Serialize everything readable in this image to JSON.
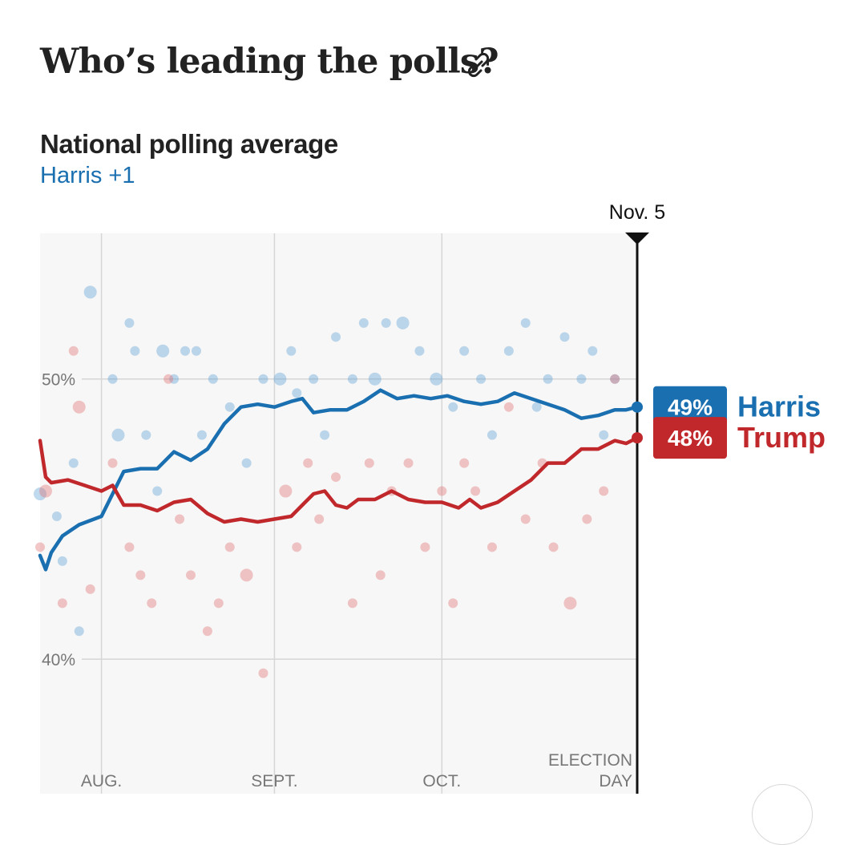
{
  "header": {
    "title": "Who’s leading the polls?",
    "link_icon": "link-icon"
  },
  "chart_header": {
    "title": "National polling average",
    "margin": "Harris +1"
  },
  "colors": {
    "harris": "#1a6fb0",
    "trump": "#c0282c",
    "harris_dot": "#5e9fd4",
    "trump_dot": "#e07474",
    "plot_bg": "#f7f7f7",
    "grid": "#d6d6d6"
  },
  "chart_data": {
    "type": "line",
    "x_axis": {
      "type": "date",
      "range": [
        "2024-07-21",
        "2024-11-05"
      ],
      "ticks": [
        {
          "date": "2024-08-01",
          "label": "AUG."
        },
        {
          "date": "2024-09-01",
          "label": "SEPT."
        },
        {
          "date": "2024-10-01",
          "label": "OCT."
        },
        {
          "date": "2024-11-05",
          "label": "ELECTION DAY"
        }
      ]
    },
    "y_axis": {
      "range": [
        35.2,
        55.2
      ],
      "ticks": [
        {
          "value": 50,
          "label": "50%"
        },
        {
          "value": 40,
          "label": "40%"
        }
      ],
      "unit": "%"
    },
    "grid": true,
    "marker": {
      "date": "2024-11-05",
      "label": "Nov. 5"
    },
    "series": [
      {
        "name": "Harris",
        "final_label": "49%",
        "points": [
          [
            "2024-07-21",
            43.7
          ],
          [
            "2024-07-22",
            43.2
          ],
          [
            "2024-07-23",
            43.8
          ],
          [
            "2024-07-25",
            44.4
          ],
          [
            "2024-07-28",
            44.8
          ],
          [
            "2024-08-01",
            45.1
          ],
          [
            "2024-08-03",
            45.9
          ],
          [
            "2024-08-05",
            46.7
          ],
          [
            "2024-08-08",
            46.8
          ],
          [
            "2024-08-11",
            46.8
          ],
          [
            "2024-08-14",
            47.4
          ],
          [
            "2024-08-17",
            47.1
          ],
          [
            "2024-08-20",
            47.5
          ],
          [
            "2024-08-23",
            48.4
          ],
          [
            "2024-08-26",
            49.0
          ],
          [
            "2024-08-29",
            49.1
          ],
          [
            "2024-09-01",
            49.0
          ],
          [
            "2024-09-04",
            49.2
          ],
          [
            "2024-09-06",
            49.3
          ],
          [
            "2024-09-08",
            48.8
          ],
          [
            "2024-09-11",
            48.9
          ],
          [
            "2024-09-14",
            48.9
          ],
          [
            "2024-09-17",
            49.2
          ],
          [
            "2024-09-20",
            49.6
          ],
          [
            "2024-09-23",
            49.3
          ],
          [
            "2024-09-26",
            49.4
          ],
          [
            "2024-09-29",
            49.3
          ],
          [
            "2024-10-02",
            49.4
          ],
          [
            "2024-10-05",
            49.2
          ],
          [
            "2024-10-08",
            49.1
          ],
          [
            "2024-10-11",
            49.2
          ],
          [
            "2024-10-14",
            49.5
          ],
          [
            "2024-10-17",
            49.3
          ],
          [
            "2024-10-20",
            49.1
          ],
          [
            "2024-10-23",
            48.9
          ],
          [
            "2024-10-26",
            48.6
          ],
          [
            "2024-10-29",
            48.7
          ],
          [
            "2024-11-01",
            48.9
          ],
          [
            "2024-11-03",
            48.9
          ],
          [
            "2024-11-05",
            49.0
          ]
        ]
      },
      {
        "name": "Trump",
        "final_label": "48%",
        "points": [
          [
            "2024-07-21",
            47.8
          ],
          [
            "2024-07-22",
            46.5
          ],
          [
            "2024-07-23",
            46.3
          ],
          [
            "2024-07-26",
            46.4
          ],
          [
            "2024-07-29",
            46.2
          ],
          [
            "2024-08-01",
            46.0
          ],
          [
            "2024-08-03",
            46.2
          ],
          [
            "2024-08-05",
            45.5
          ],
          [
            "2024-08-08",
            45.5
          ],
          [
            "2024-08-11",
            45.3
          ],
          [
            "2024-08-14",
            45.6
          ],
          [
            "2024-08-17",
            45.7
          ],
          [
            "2024-08-20",
            45.2
          ],
          [
            "2024-08-23",
            44.9
          ],
          [
            "2024-08-26",
            45.0
          ],
          [
            "2024-08-29",
            44.9
          ],
          [
            "2024-09-01",
            45.0
          ],
          [
            "2024-09-04",
            45.1
          ],
          [
            "2024-09-06",
            45.5
          ],
          [
            "2024-09-08",
            45.9
          ],
          [
            "2024-09-10",
            46.0
          ],
          [
            "2024-09-12",
            45.5
          ],
          [
            "2024-09-14",
            45.4
          ],
          [
            "2024-09-16",
            45.7
          ],
          [
            "2024-09-19",
            45.7
          ],
          [
            "2024-09-22",
            46.0
          ],
          [
            "2024-09-25",
            45.7
          ],
          [
            "2024-09-28",
            45.6
          ],
          [
            "2024-10-01",
            45.6
          ],
          [
            "2024-10-04",
            45.4
          ],
          [
            "2024-10-06",
            45.7
          ],
          [
            "2024-10-08",
            45.4
          ],
          [
            "2024-10-11",
            45.6
          ],
          [
            "2024-10-14",
            46.0
          ],
          [
            "2024-10-17",
            46.4
          ],
          [
            "2024-10-20",
            47.0
          ],
          [
            "2024-10-23",
            47.0
          ],
          [
            "2024-10-26",
            47.5
          ],
          [
            "2024-10-29",
            47.5
          ],
          [
            "2024-11-01",
            47.8
          ],
          [
            "2024-11-03",
            47.7
          ],
          [
            "2024-11-05",
            47.9
          ]
        ]
      }
    ],
    "polls": {
      "harris": [
        [
          "2024-07-21",
          45.9,
          2
        ],
        [
          "2024-07-24",
          45.1,
          1
        ],
        [
          "2024-07-25",
          43.5,
          1
        ],
        [
          "2024-07-27",
          47.0,
          1
        ],
        [
          "2024-07-28",
          41.0,
          1
        ],
        [
          "2024-07-30",
          53.1,
          2
        ],
        [
          "2024-08-03",
          50.0,
          1
        ],
        [
          "2024-08-04",
          48.0,
          2
        ],
        [
          "2024-08-06",
          52.0,
          1
        ],
        [
          "2024-08-07",
          51.0,
          1
        ],
        [
          "2024-08-09",
          48.0,
          1
        ],
        [
          "2024-08-11",
          46.0,
          1
        ],
        [
          "2024-08-12",
          51.0,
          2
        ],
        [
          "2024-08-14",
          50.0,
          1
        ],
        [
          "2024-08-16",
          51.0,
          1
        ],
        [
          "2024-08-18",
          51.0,
          1
        ],
        [
          "2024-08-19",
          48.0,
          1
        ],
        [
          "2024-08-21",
          50.0,
          1
        ],
        [
          "2024-08-24",
          49.0,
          1
        ],
        [
          "2024-08-27",
          47.0,
          1
        ],
        [
          "2024-08-30",
          50.0,
          1
        ],
        [
          "2024-09-02",
          50.0,
          2
        ],
        [
          "2024-09-04",
          51.0,
          1
        ],
        [
          "2024-09-05",
          49.5,
          1
        ],
        [
          "2024-09-08",
          50.0,
          1
        ],
        [
          "2024-09-10",
          48.0,
          1
        ],
        [
          "2024-09-12",
          51.5,
          1
        ],
        [
          "2024-09-15",
          50.0,
          1
        ],
        [
          "2024-09-17",
          52.0,
          1
        ],
        [
          "2024-09-19",
          50.0,
          2
        ],
        [
          "2024-09-21",
          52.0,
          1
        ],
        [
          "2024-09-24",
          52.0,
          2
        ],
        [
          "2024-09-27",
          51.0,
          1
        ],
        [
          "2024-09-30",
          50.0,
          2
        ],
        [
          "2024-10-03",
          49.0,
          1
        ],
        [
          "2024-10-05",
          51.0,
          1
        ],
        [
          "2024-10-08",
          50.0,
          1
        ],
        [
          "2024-10-10",
          48.0,
          1
        ],
        [
          "2024-10-13",
          51.0,
          1
        ],
        [
          "2024-10-16",
          52.0,
          1
        ],
        [
          "2024-10-18",
          49.0,
          1
        ],
        [
          "2024-10-20",
          50.0,
          1
        ],
        [
          "2024-10-23",
          51.5,
          1
        ],
        [
          "2024-10-26",
          50.0,
          1
        ],
        [
          "2024-10-28",
          51.0,
          1
        ],
        [
          "2024-10-30",
          48.0,
          1
        ],
        [
          "2024-11-01",
          50.0,
          1
        ]
      ],
      "trump": [
        [
          "2024-07-21",
          44.0,
          1
        ],
        [
          "2024-07-22",
          46.0,
          2
        ],
        [
          "2024-07-25",
          42.0,
          1
        ],
        [
          "2024-07-27",
          51.0,
          1
        ],
        [
          "2024-07-28",
          49.0,
          2
        ],
        [
          "2024-07-30",
          42.5,
          1
        ],
        [
          "2024-08-03",
          47.0,
          1
        ],
        [
          "2024-08-06",
          44.0,
          1
        ],
        [
          "2024-08-08",
          43.0,
          1
        ],
        [
          "2024-08-10",
          42.0,
          1
        ],
        [
          "2024-08-13",
          50.0,
          1
        ],
        [
          "2024-08-15",
          45.0,
          1
        ],
        [
          "2024-08-17",
          43.0,
          1
        ],
        [
          "2024-08-20",
          41.0,
          1
        ],
        [
          "2024-08-22",
          42.0,
          1
        ],
        [
          "2024-08-24",
          44.0,
          1
        ],
        [
          "2024-08-27",
          43.0,
          2
        ],
        [
          "2024-08-30",
          39.5,
          1
        ],
        [
          "2024-09-03",
          46.0,
          2
        ],
        [
          "2024-09-05",
          44.0,
          1
        ],
        [
          "2024-09-07",
          47.0,
          1
        ],
        [
          "2024-09-09",
          45.0,
          1
        ],
        [
          "2024-09-12",
          46.5,
          1
        ],
        [
          "2024-09-15",
          42.0,
          1
        ],
        [
          "2024-09-18",
          47.0,
          1
        ],
        [
          "2024-09-20",
          43.0,
          1
        ],
        [
          "2024-09-22",
          46.0,
          1
        ],
        [
          "2024-09-25",
          47.0,
          1
        ],
        [
          "2024-09-28",
          44.0,
          1
        ],
        [
          "2024-10-01",
          46.0,
          1
        ],
        [
          "2024-10-03",
          42.0,
          1
        ],
        [
          "2024-10-05",
          47.0,
          1
        ],
        [
          "2024-10-07",
          46.0,
          1
        ],
        [
          "2024-10-10",
          44.0,
          1
        ],
        [
          "2024-10-13",
          49.0,
          1
        ],
        [
          "2024-10-16",
          45.0,
          1
        ],
        [
          "2024-10-19",
          47.0,
          1
        ],
        [
          "2024-10-21",
          44.0,
          1
        ],
        [
          "2024-10-24",
          42.0,
          2
        ],
        [
          "2024-10-27",
          45.0,
          1
        ],
        [
          "2024-10-30",
          46.0,
          1
        ],
        [
          "2024-11-01",
          50.0,
          1
        ]
      ]
    }
  }
}
